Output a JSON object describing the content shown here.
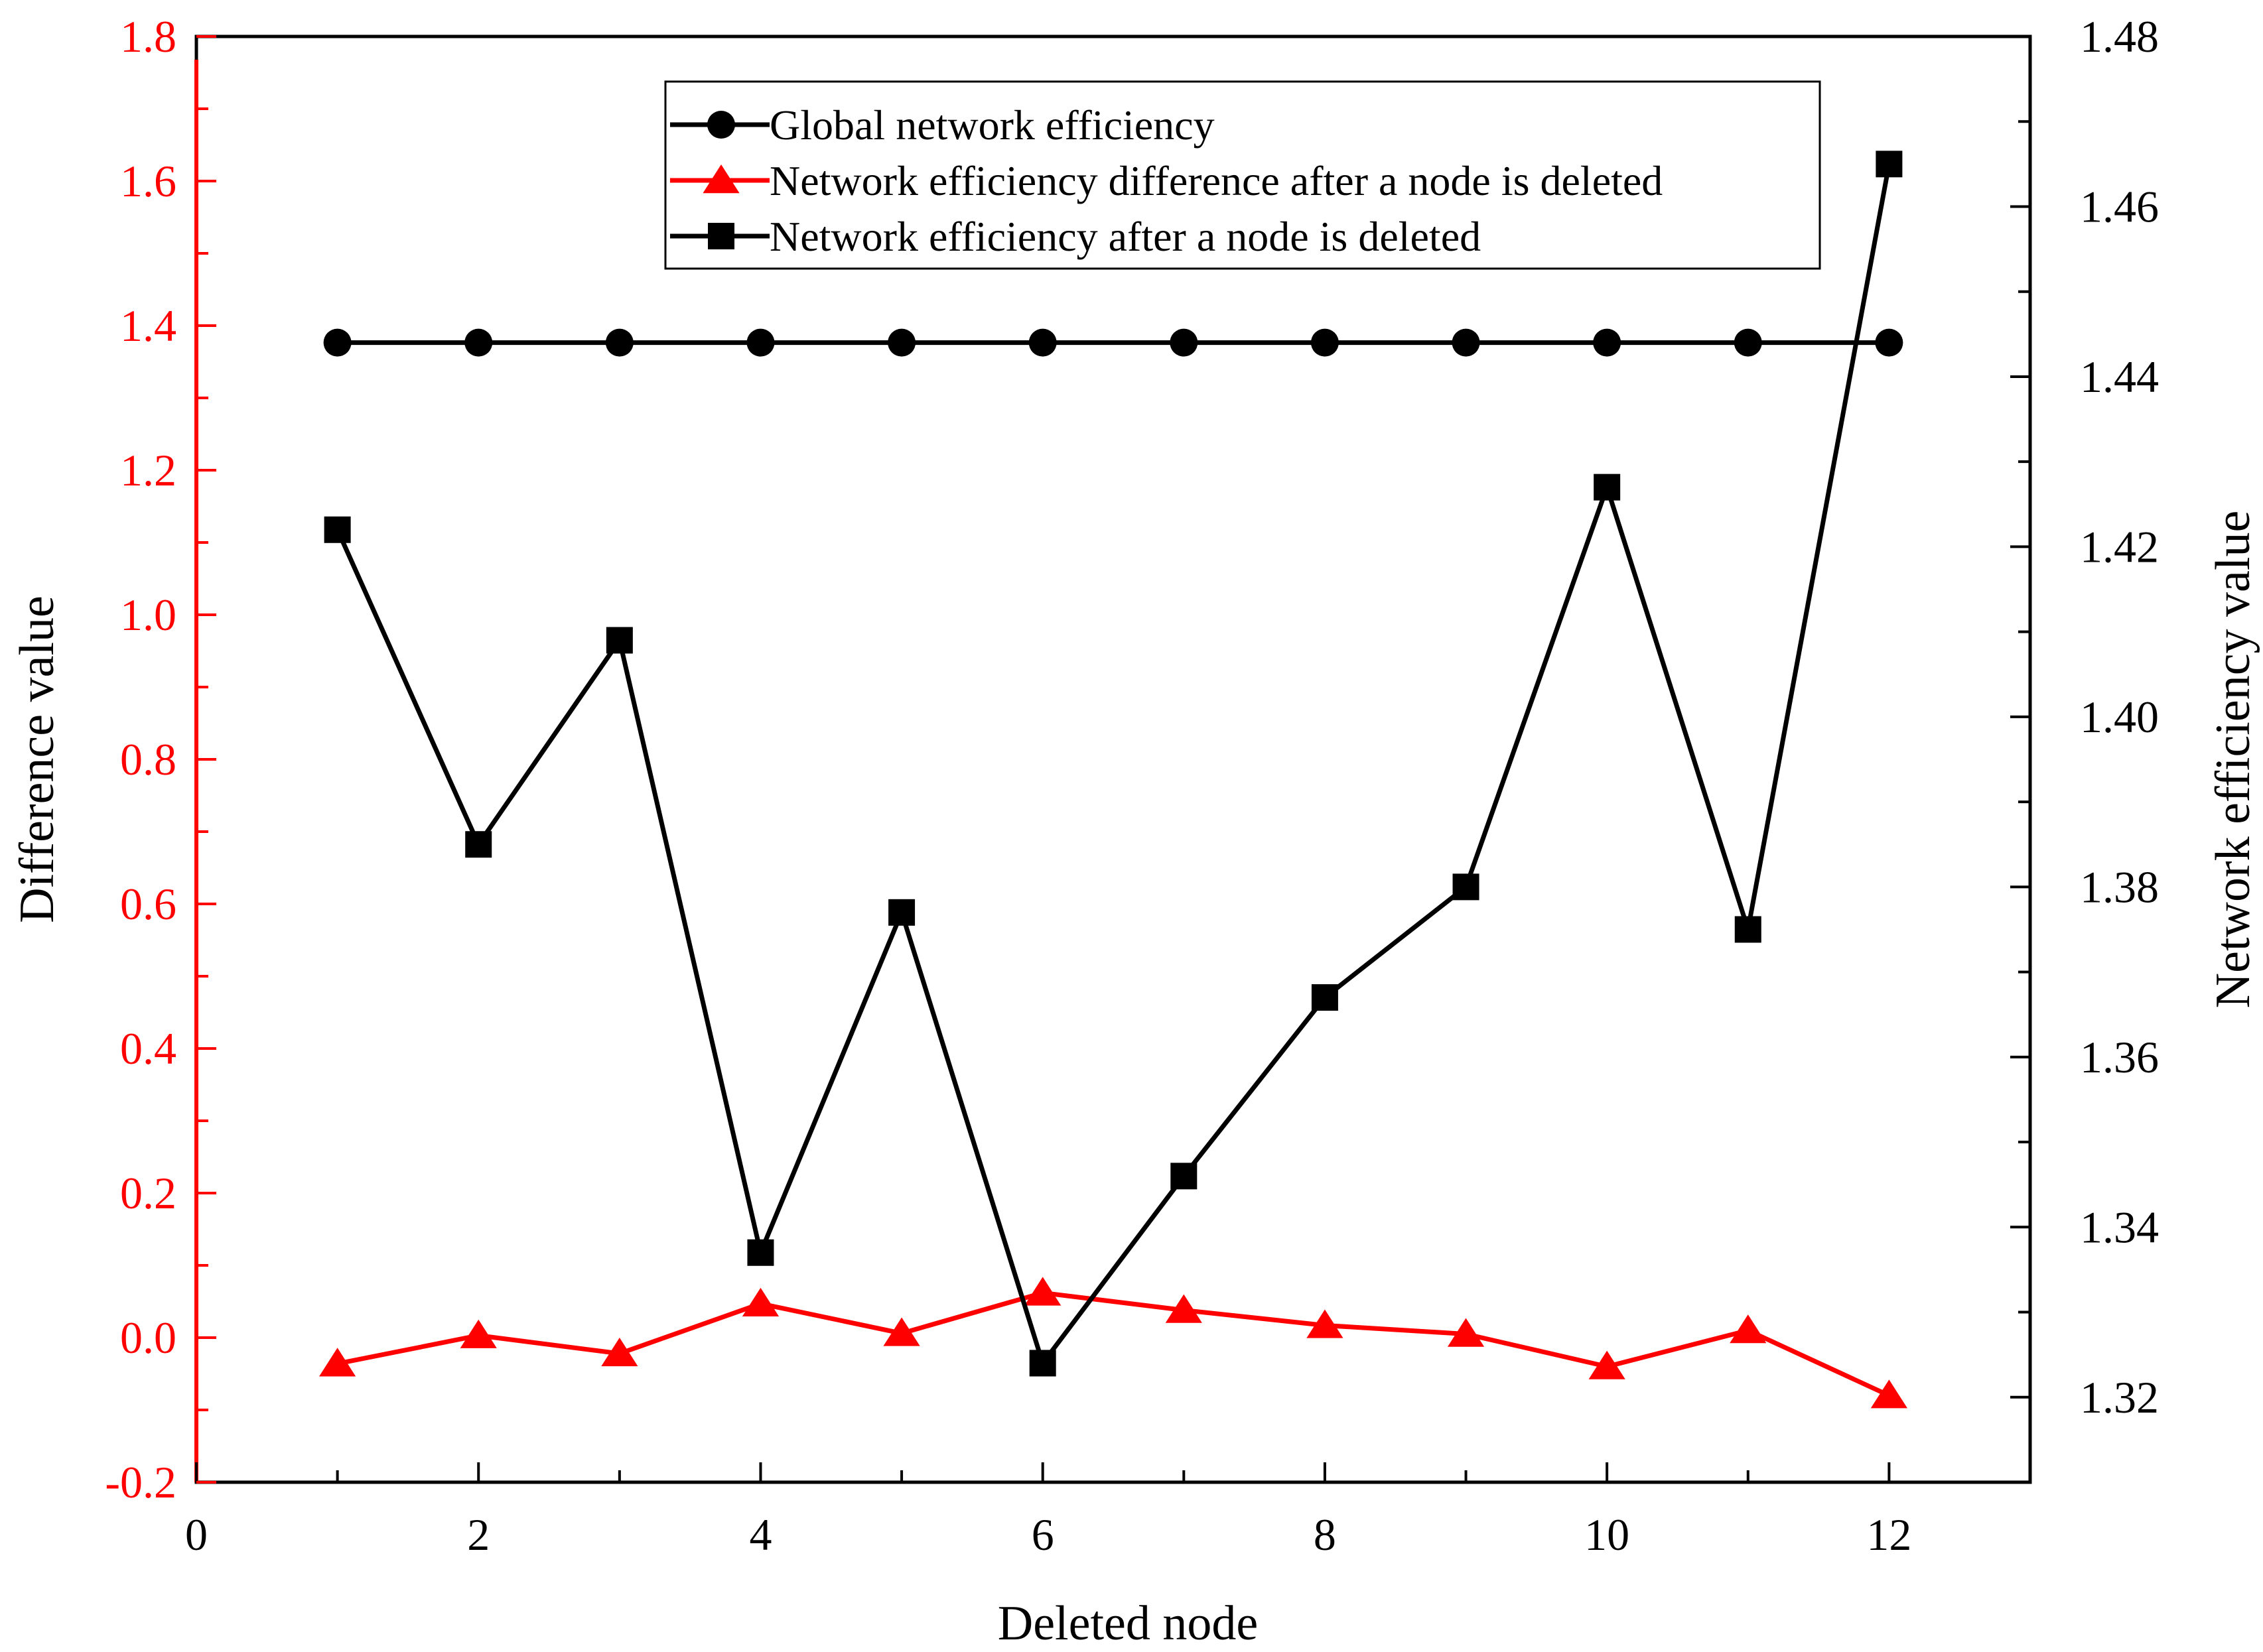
{
  "chart_data": {
    "type": "line",
    "title": "",
    "xlabel": "Deleted node",
    "ylabel_left": "Difference value",
    "ylabel_right": "Network efficiency value",
    "x": [
      1,
      2,
      3,
      4,
      5,
      6,
      7,
      8,
      9,
      10,
      11,
      12
    ],
    "xlim": [
      0,
      13
    ],
    "xticks": [
      0,
      2,
      4,
      6,
      8,
      10,
      12
    ],
    "ylim_left": [
      -0.2,
      1.8
    ],
    "yticks_left": [
      -0.2,
      0.0,
      0.2,
      0.4,
      0.6,
      0.8,
      1.0,
      1.2,
      1.4,
      1.6,
      1.8
    ],
    "ylim_right": [
      1.31,
      1.48
    ],
    "yticks_right": [
      1.32,
      1.34,
      1.36,
      1.38,
      1.4,
      1.42,
      1.44,
      1.46,
      1.48
    ],
    "legend_position": "top-center",
    "grid": false,
    "colors": {
      "left_axis": "#ff0000",
      "right_axis": "#000000"
    },
    "series": [
      {
        "name": "Global network efficiency",
        "axis": "right",
        "marker": "circle",
        "color": "#000000",
        "values": [
          1.444,
          1.444,
          1.444,
          1.444,
          1.444,
          1.444,
          1.444,
          1.444,
          1.444,
          1.444,
          1.444,
          1.444
        ]
      },
      {
        "name": "Network efficiency difference after a node is deleted",
        "axis": "left",
        "marker": "triangle",
        "color": "#ff0000",
        "values": [
          -0.036,
          0.003,
          -0.022,
          0.047,
          0.006,
          0.062,
          0.038,
          0.017,
          0.005,
          -0.04,
          0.01,
          -0.08
        ]
      },
      {
        "name": "Network efficiency after a node is deleted",
        "axis": "right",
        "marker": "square",
        "color": "#000000",
        "values": [
          1.422,
          1.385,
          1.409,
          1.337,
          1.377,
          1.324,
          1.346,
          1.367,
          1.38,
          1.427,
          1.375,
          1.465
        ]
      }
    ]
  }
}
